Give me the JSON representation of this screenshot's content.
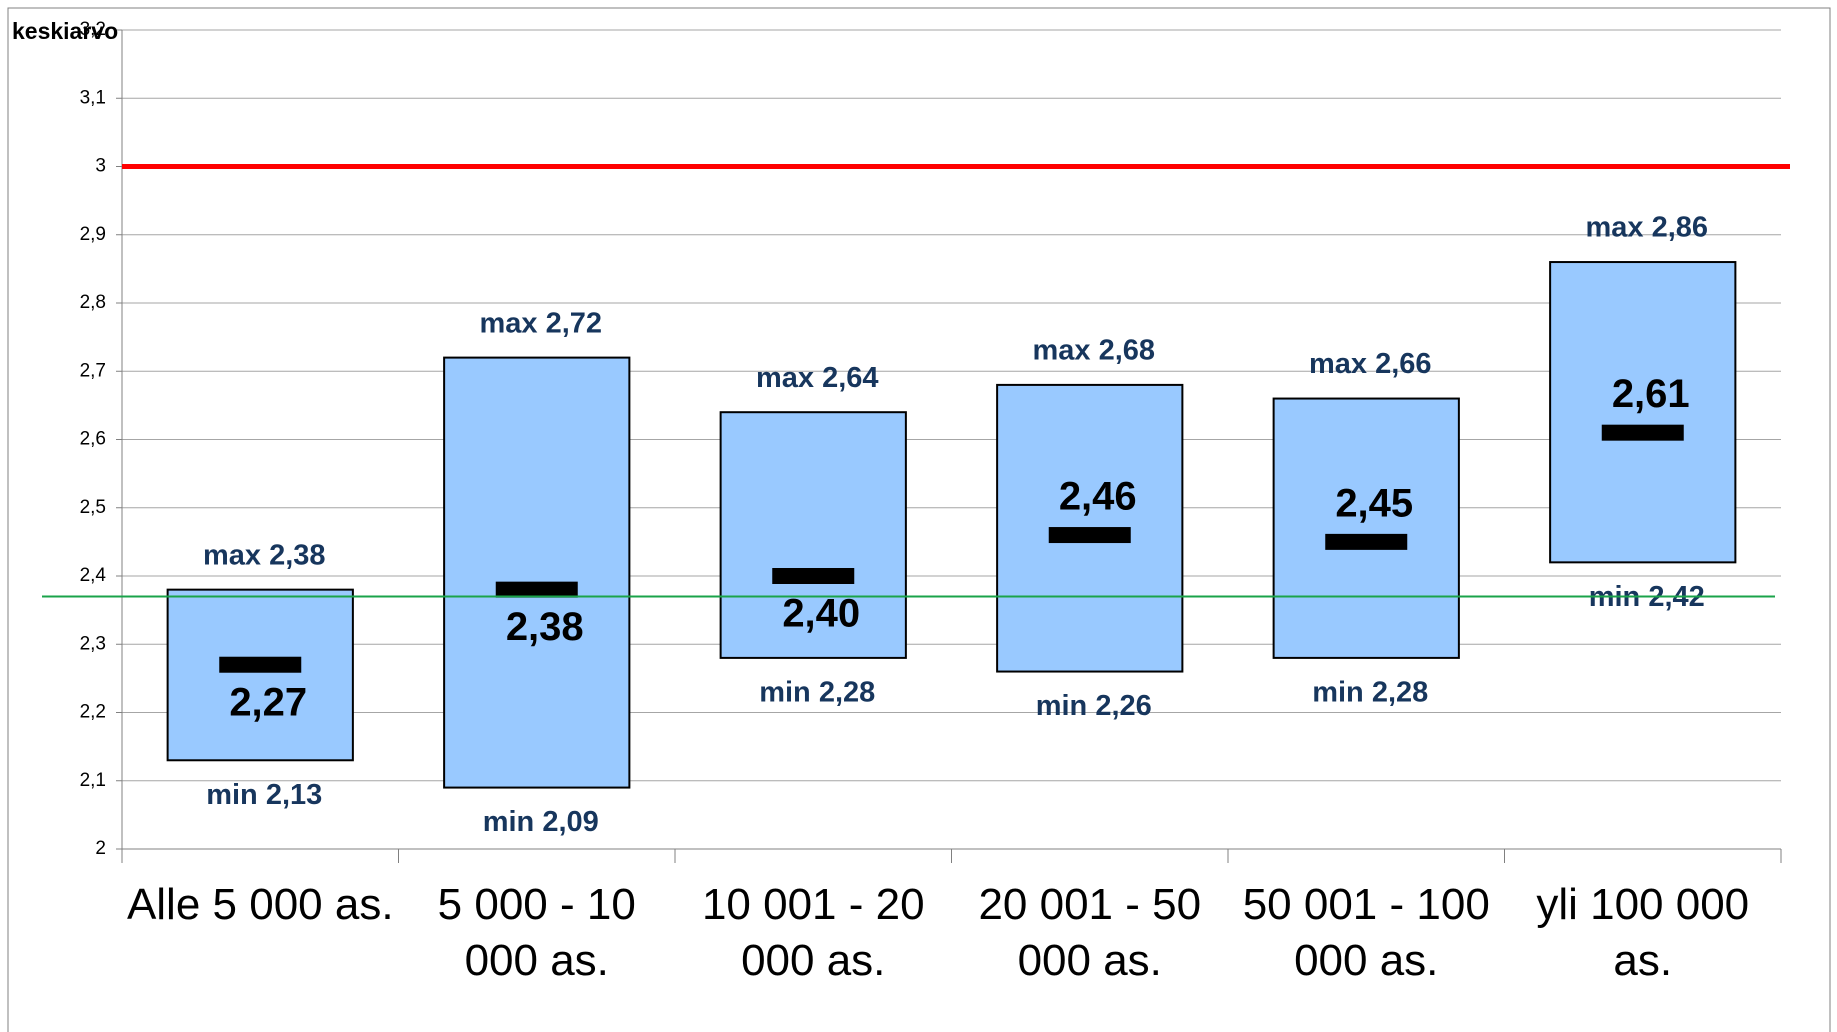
{
  "chart_data": {
    "type": "range",
    "title": "keskiarvo",
    "categories": [
      "Alle 5 000 as.",
      "5 000 - 10 000 as.",
      "10 001 - 20 000 as.",
      "20 001 - 50 000 as.",
      "50 001 - 100 000 as.",
      "yli 100 000 as."
    ],
    "min": {
      "values": [
        2.13,
        2.09,
        2.28,
        2.26,
        2.28,
        2.42
      ],
      "value_labels": [
        "min 2,13",
        "min 2,09",
        "min 2,28",
        "min 2,26",
        "min 2,28",
        "min 2,42"
      ]
    },
    "max": {
      "values": [
        2.38,
        2.72,
        2.64,
        2.68,
        2.66,
        2.86
      ],
      "value_labels": [
        "max 2,38",
        "max 2,72",
        "max 2,64",
        "max 2,68",
        "max 2,66",
        "max 2,86"
      ]
    },
    "mean": {
      "values": [
        2.27,
        2.38,
        2.4,
        2.46,
        2.45,
        2.61
      ],
      "value_labels": [
        "2,27",
        "2,38",
        "2,40",
        "2,46",
        "2,45",
        "2,61"
      ]
    },
    "color": "#99c9ff",
    "reference_lines": [
      {
        "value": 3.0,
        "color": "#ff0000"
      },
      {
        "value": 2.37,
        "color": "#1aa34a"
      }
    ],
    "ylim": [
      2,
      3.2
    ],
    "yticks": [
      2,
      {
        "value": 2.1,
        "label": "2,1"
      },
      {
        "value": 2.2,
        "label": "2,2"
      },
      {
        "value": 2.3,
        "label": "2,3"
      },
      {
        "value": 2.4,
        "label": "2,4"
      },
      {
        "value": 2.5,
        "label": "2,5"
      },
      {
        "value": 2.6,
        "label": "2,6"
      },
      {
        "value": 2.7,
        "label": "2,7"
      },
      {
        "value": 2.8,
        "label": "2,8"
      },
      {
        "value": 2.9,
        "label": "2,9"
      },
      3,
      {
        "value": 3.1,
        "label": "3,1"
      },
      {
        "value": 3.2,
        "label": "3,2"
      }
    ],
    "grid": true
  }
}
